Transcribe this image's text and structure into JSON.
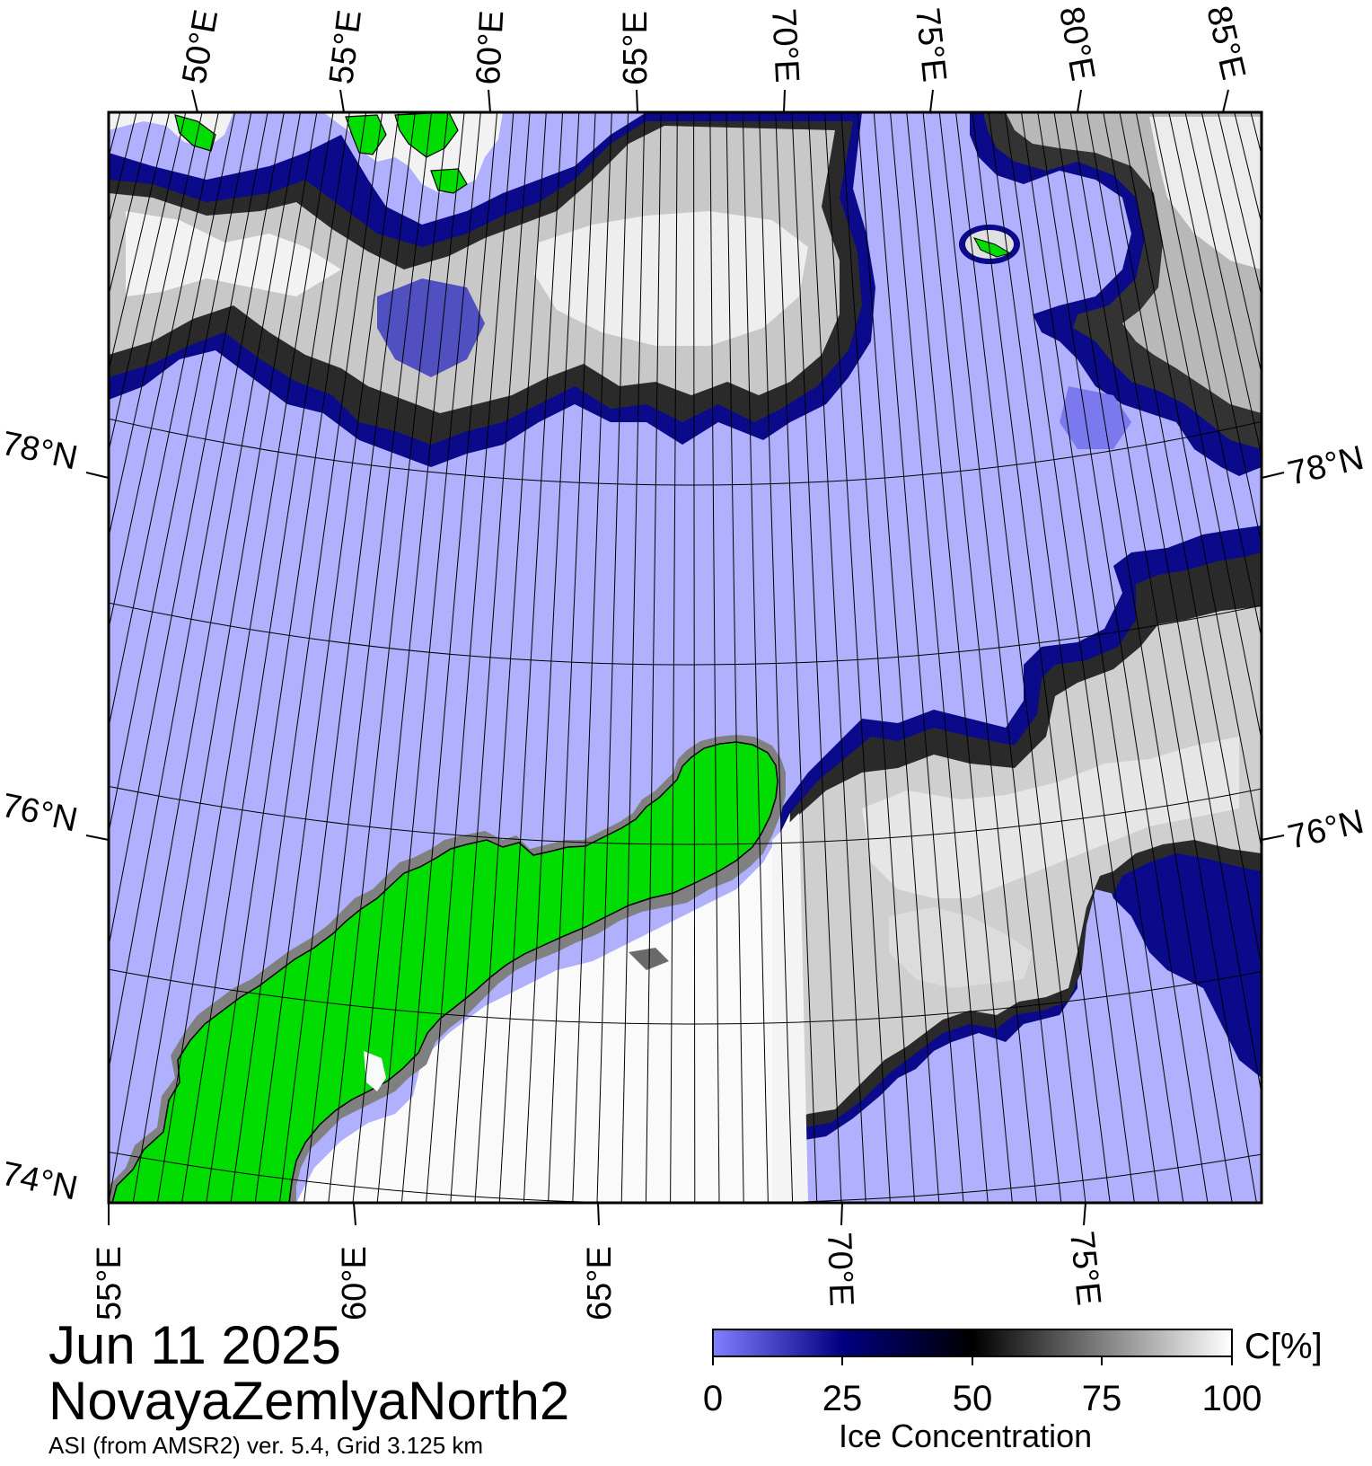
{
  "map": {
    "date": "Jun 11 2025",
    "region": "NovayaZemlyaNorth2",
    "source": "ASI (from AMSR2) ver. 5.4,  Grid 3.125 km",
    "top_lon_labels": [
      "50°E",
      "55°E",
      "60°E",
      "65°E",
      "70°E",
      "75°E",
      "80°E",
      "85°E"
    ],
    "bottom_lon_labels": [
      "55°E",
      "60°E",
      "65°E",
      "70°E",
      "75°E"
    ],
    "left_lat_labels": [
      "78°N",
      "76°N",
      "74°N"
    ],
    "right_lat_labels": [
      "78°N",
      "76°N"
    ],
    "colors": {
      "open_water": "#b0b0ff",
      "low_conc": "#0a0a8a",
      "ice_dark": "#1a1a1a",
      "ice_gray": "#8a8a8a",
      "ice_light": "#f5f5f5",
      "land": "#00dc00",
      "coast": "#808080"
    }
  },
  "colorbar": {
    "unit": "C[%]",
    "title": "Ice Concentration",
    "ticks": [
      "0",
      "25",
      "50",
      "75",
      "100"
    ],
    "stops": [
      "#8080ff",
      "#000080",
      "#000000",
      "#808080",
      "#ffffff"
    ]
  }
}
